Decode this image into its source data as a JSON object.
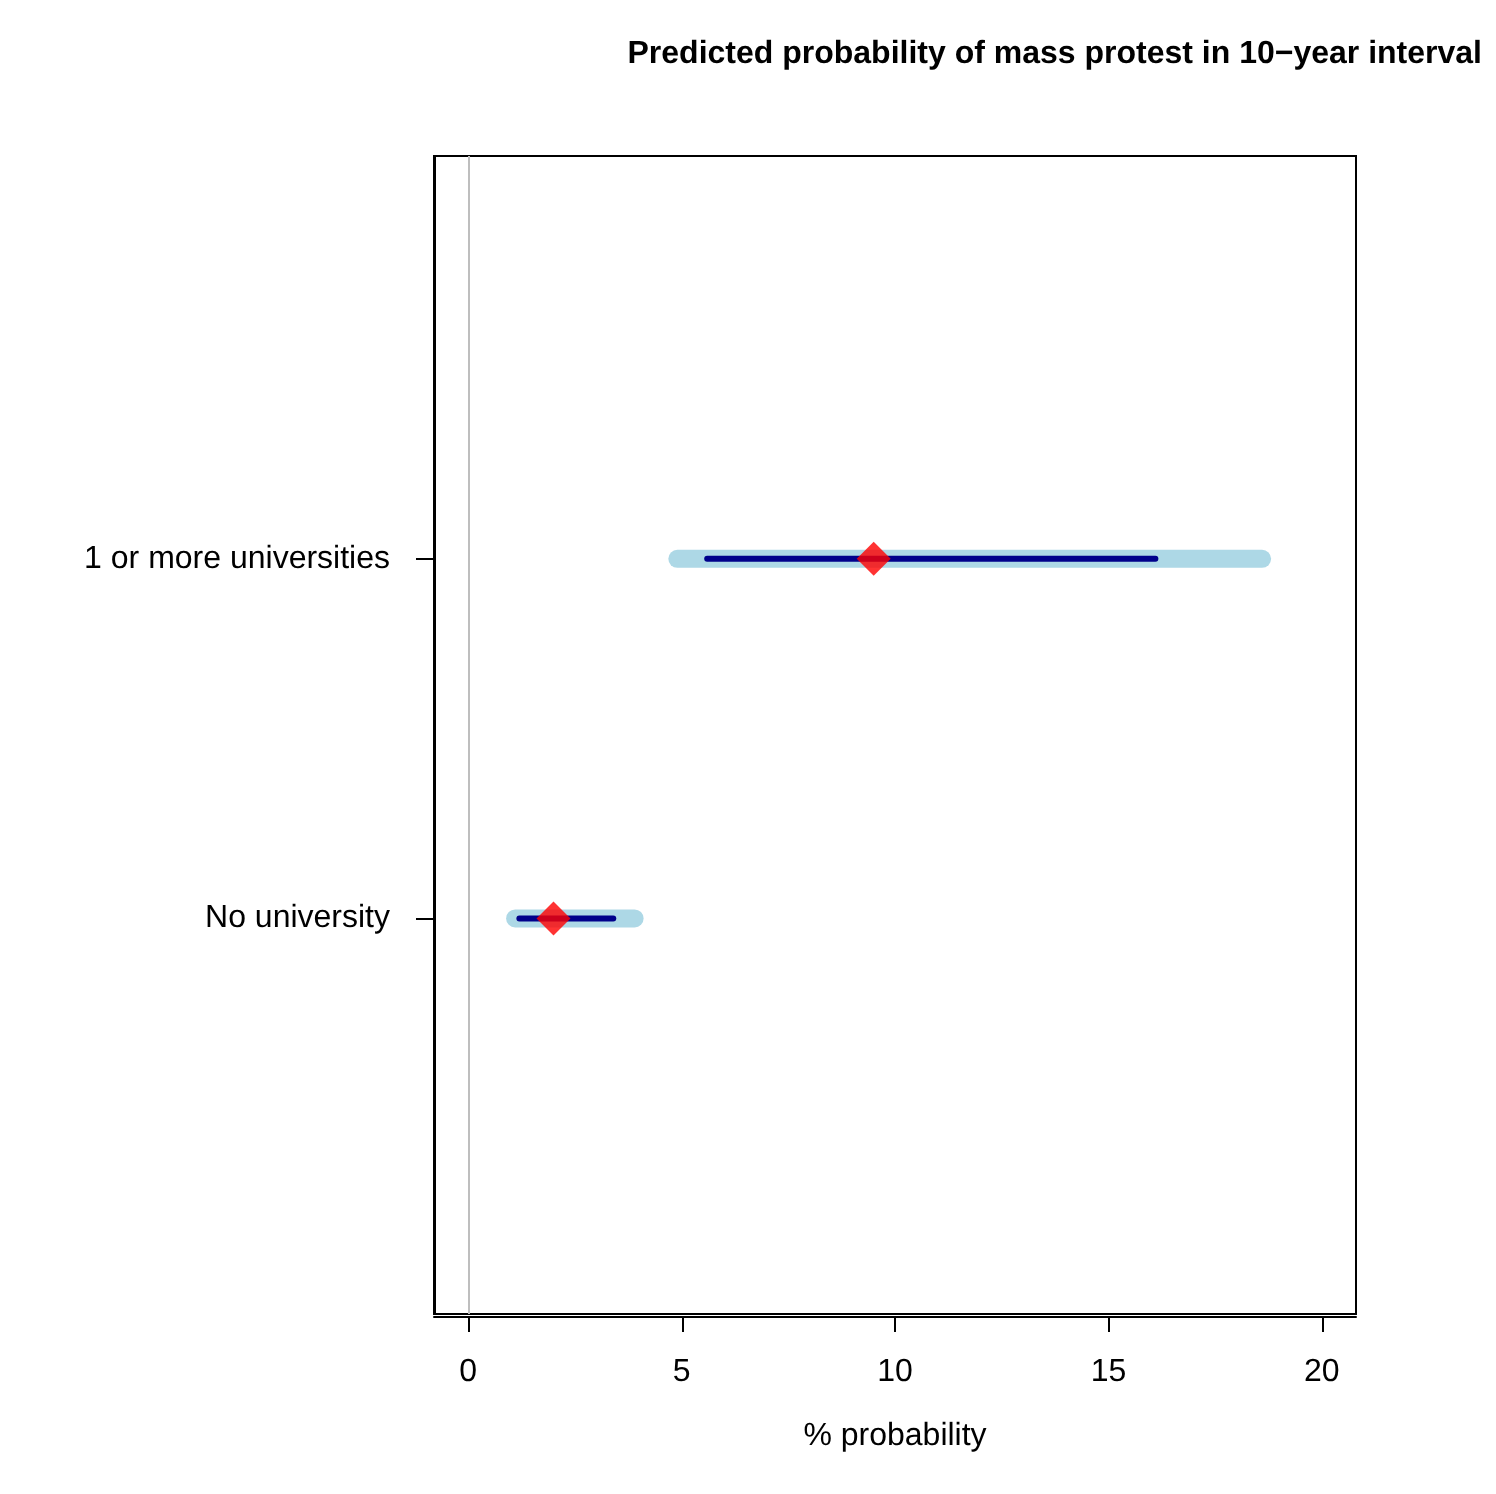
{
  "chart_data": {
    "type": "bar",
    "orientation": "horizontal",
    "title": "Predicted probability of mass protest in 10−year interval",
    "xlabel": "% probability",
    "categories": [
      "1 or more universities",
      "No university"
    ],
    "series": [
      {
        "color": "#add8e6",
        "base": [
          4.9,
          1.1
        ],
        "values": [
          13.7,
          2.8
        ]
      },
      {
        "color": "#00008b",
        "base": [
          5.6,
          1.2
        ],
        "values": [
          10.5,
          2.2
        ]
      },
      {
        "type": "scatter",
        "color": "#ff0000",
        "marker": "diamond",
        "values": [
          9.5,
          2.0
        ]
      }
    ],
    "xlim": [
      -0.8,
      20.8
    ],
    "xticks": [
      0,
      5,
      10,
      15,
      20
    ],
    "grid": false,
    "ref_lines": [
      {
        "axis": "x",
        "value": 0,
        "color": "#bebebe"
      }
    ]
  }
}
